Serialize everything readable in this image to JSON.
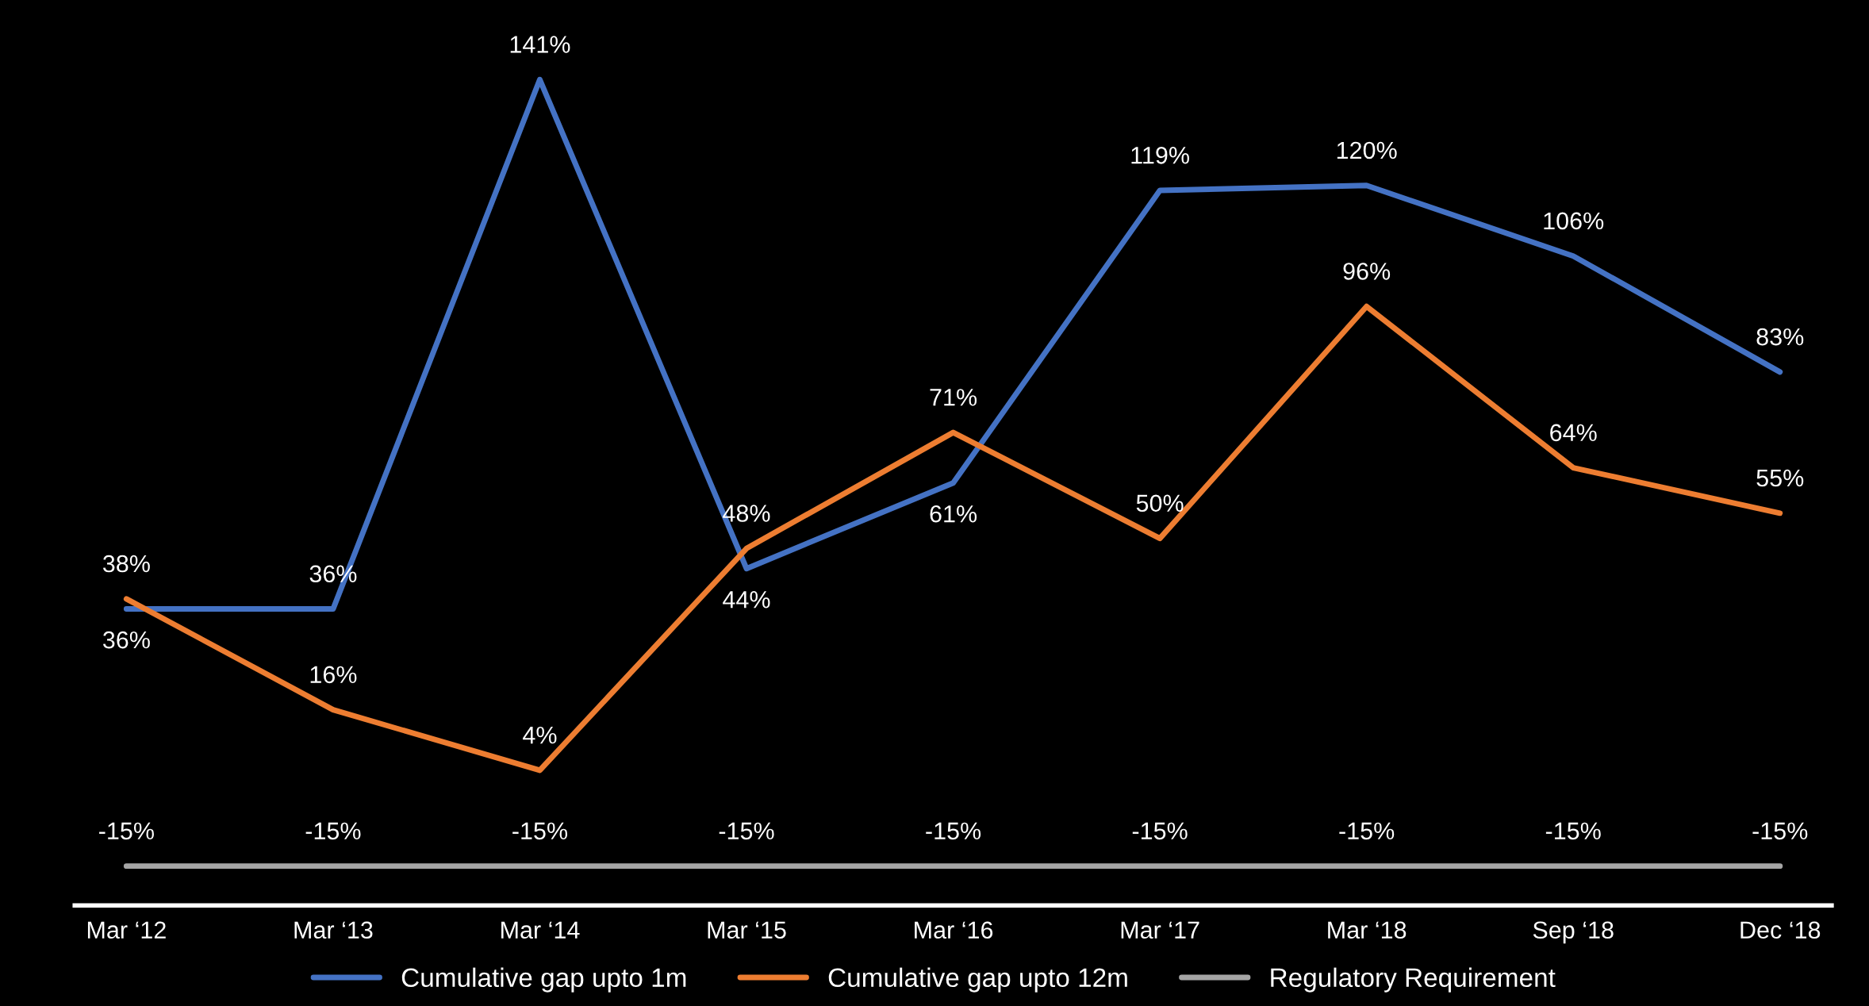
{
  "chart_data": {
    "type": "line",
    "categories": [
      "Mar ‘12",
      "Mar ‘13",
      "Mar ‘14",
      "Mar ‘15",
      "Mar ‘16",
      "Mar ‘17",
      "Mar ‘18",
      "Sep ‘18",
      "Dec ‘18"
    ],
    "series": [
      {
        "name": "Cumulative gap upto 1m",
        "color": "#4472c4",
        "values": [
          36,
          36,
          141,
          44,
          61,
          119,
          120,
          106,
          83
        ],
        "value_labels": [
          "36%",
          "36%",
          "141%",
          "44%",
          "61%",
          "119%",
          "120%",
          "106%",
          "83%"
        ]
      },
      {
        "name": "Cumulative gap upto 12m",
        "color": "#ed7d31",
        "values": [
          38,
          16,
          4,
          48,
          71,
          50,
          96,
          64,
          55
        ],
        "value_labels": [
          "38%",
          "16%",
          "4%",
          "48%",
          "71%",
          "50%",
          "96%",
          "64%",
          "55%"
        ]
      },
      {
        "name": "Regulatory Requirement",
        "color": "#a5a5a5",
        "values": [
          -15,
          -15,
          -15,
          -15,
          -15,
          -15,
          -15,
          -15,
          -15
        ],
        "value_labels": [
          "-15%",
          "-15%",
          "-15%",
          "-15%",
          "-15%",
          "-15%",
          "-15%",
          "-15%",
          "-15%"
        ]
      }
    ],
    "legend": "bottom",
    "tick_labels": "x",
    "marker": "none",
    "line_style": "solid"
  }
}
